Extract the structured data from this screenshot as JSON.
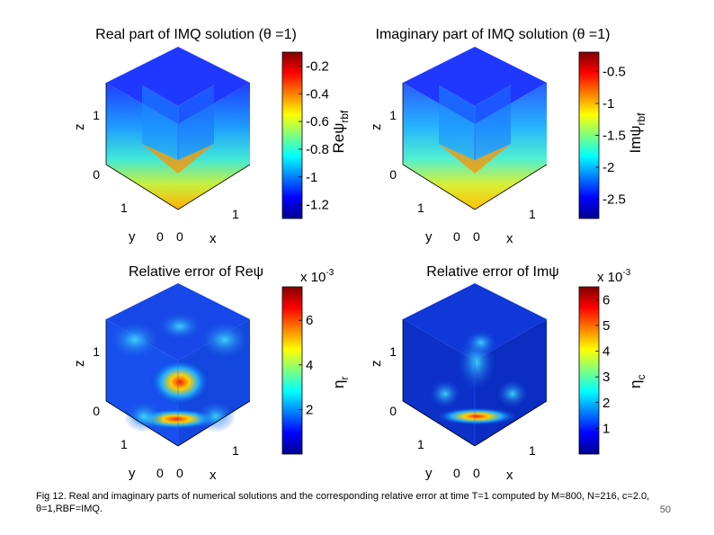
{
  "chart_data": [
    {
      "type": "heatmap",
      "title": "Real part of IMQ solution (θ =1)",
      "xlabel": "x",
      "ylabel": "y",
      "zlabel": "z",
      "x_ticks": [
        "0",
        "1"
      ],
      "y_ticks": [
        "0",
        "1"
      ],
      "z_ticks": [
        "0",
        "1"
      ],
      "colorbar": {
        "label": "Reψrbf",
        "ticks": [
          "-0.2",
          "-0.4",
          "-0.6",
          "-0.8",
          "-1",
          "-1.2"
        ],
        "exponent": "",
        "range": [
          -1.3,
          -0.1
        ]
      },
      "pattern": "vertical-gradient"
    },
    {
      "type": "heatmap",
      "title": "Imaginary part of IMQ solution (θ =1)",
      "xlabel": "x",
      "ylabel": "y",
      "zlabel": "z",
      "x_ticks": [
        "0",
        "1"
      ],
      "y_ticks": [
        "0",
        "1"
      ],
      "z_ticks": [
        "0",
        "1"
      ],
      "colorbar": {
        "label": "Imψrbf",
        "ticks": [
          "-0.5",
          "-1",
          "-1.5",
          "-2",
          "-2.5"
        ],
        "exponent": "",
        "range": [
          -2.8,
          -0.2
        ]
      },
      "pattern": "vertical-gradient"
    },
    {
      "type": "heatmap",
      "title": "Relative error of Reψ",
      "xlabel": "x",
      "ylabel": "y",
      "zlabel": "z",
      "x_ticks": [
        "0",
        "1"
      ],
      "y_ticks": [
        "0",
        "1"
      ],
      "z_ticks": [
        "0",
        "1"
      ],
      "colorbar": {
        "label": "ηr",
        "ticks": [
          "6",
          "4",
          "2"
        ],
        "exponent": "x 10-3",
        "range": [
          0,
          7.5
        ]
      },
      "pattern": "error-hotspots"
    },
    {
      "type": "heatmap",
      "title": "Relative error of Imψ",
      "xlabel": "x",
      "ylabel": "y",
      "zlabel": "z",
      "x_ticks": [
        "0",
        "1"
      ],
      "y_ticks": [
        "0",
        "1"
      ],
      "z_ticks": [
        "0",
        "1"
      ],
      "colorbar": {
        "label": "ηc",
        "ticks": [
          "6",
          "5",
          "4",
          "3",
          "2",
          "1"
        ],
        "exponent": "x 10-3",
        "range": [
          0,
          6.5
        ]
      },
      "pattern": "error-hotspots"
    }
  ],
  "caption": "Fig 12. Real and imaginary parts of numerical solutions and the corresponding relative error at time T=1 computed by M=800, N=216, c=2.0, θ=1,RBF=IMQ.",
  "page_number": "50",
  "colors": {
    "jet_low": "#00008f",
    "jet_mid": "#7fff7f",
    "jet_high": "#800000"
  }
}
